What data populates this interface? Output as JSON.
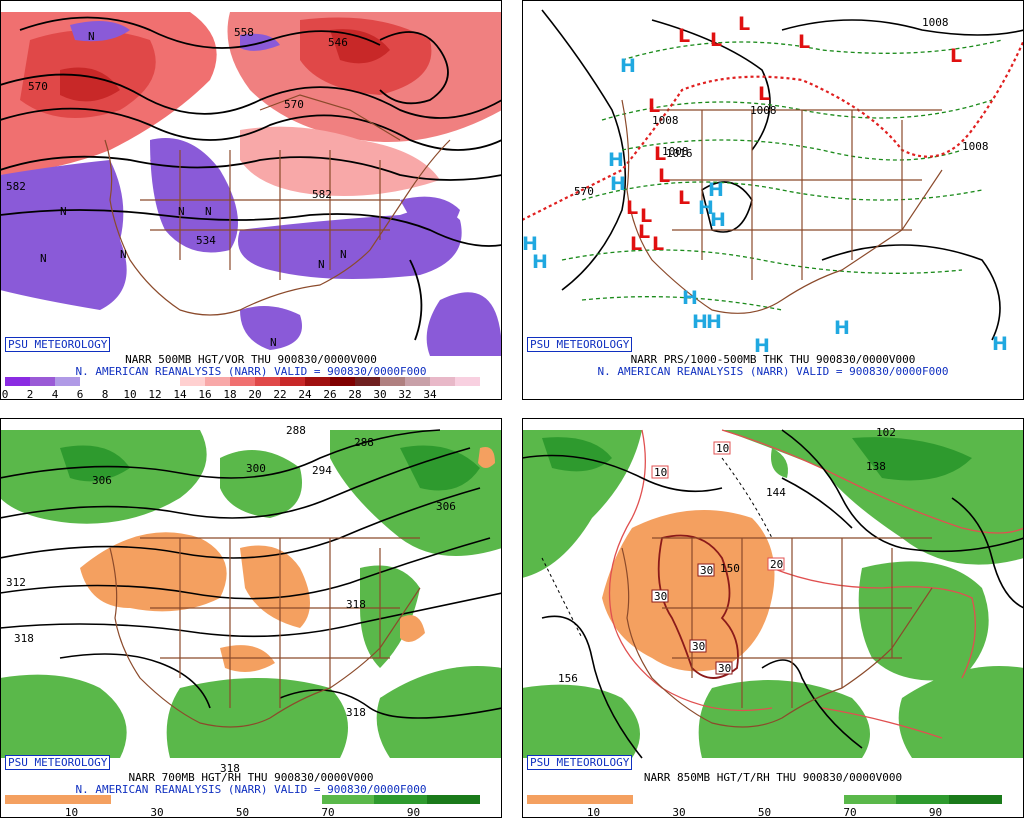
{
  "branding": "PSU METEOROLOGY",
  "panels": [
    {
      "title1": "NARR 500MB HGT/VOR THU 900830/0000V000",
      "title2": "N. AMERICAN REANALYSIS (NARR) VALID = 900830/0000F000",
      "colorbar": [
        "#8a2be2",
        "#9a5ad6",
        "#b09ae6",
        "#ffffff",
        "#ffffff",
        "#ffffff",
        "#ffffff",
        "#ffd0d0",
        "#f8a8a8",
        "#f07070",
        "#e04848",
        "#c82828",
        "#a01010",
        "#800000",
        "#702020",
        "#b08080",
        "#c8a0a8",
        "#e8b8c8",
        "#f8d0e0"
      ],
      "ticks": [
        "0",
        "2",
        "4",
        "6",
        "8",
        "10",
        "12",
        "14",
        "16",
        "18",
        "20",
        "22",
        "24",
        "26",
        "28",
        "30",
        "32",
        "34"
      ],
      "contour_labels": [
        "570",
        "582",
        "546",
        "582",
        "534",
        "570",
        "558"
      ]
    },
    {
      "title1": "NARR PRS/1000-500MB THK THU 900830/0000V000",
      "title2": "N. AMERICAN REANALYSIS (NARR) VALID = 900830/0000F000",
      "contour_labels": [
        "1008",
        "1008",
        "1008",
        "1008",
        "1016",
        "570",
        "1008"
      ],
      "low_symbol": "L",
      "high_symbol": "H"
    },
    {
      "title1": "NARR 700MB HGT/RH THU 900830/0000V000",
      "title2": "N. AMERICAN REANALYSIS (NARR) VALID = 900830/0000F000",
      "colorbar": [
        "#f4a060",
        "#f4a060",
        "#ffffff",
        "#ffffff",
        "#ffffff",
        "#ffffff",
        "#5ab84a",
        "#2e9a2e",
        "#1a7a1a"
      ],
      "ticks": [
        "10",
        "30",
        "50",
        "70",
        "90"
      ],
      "contour_labels": [
        "288",
        "300",
        "294",
        "306",
        "306",
        "288",
        "312",
        "318",
        "318",
        "318",
        "318"
      ]
    },
    {
      "title1": "NARR 850MB HGT/T/RH THU 900830/0000V000",
      "colorbar": [
        "#f4a060",
        "#f4a060",
        "#ffffff",
        "#ffffff",
        "#ffffff",
        "#ffffff",
        "#5ab84a",
        "#2e9a2e",
        "#1a7a1a"
      ],
      "ticks": [
        "10",
        "30",
        "50",
        "70",
        "90"
      ],
      "contour_labels": [
        "144",
        "150",
        "156",
        "138",
        "102"
      ],
      "temp_boxes": [
        "10",
        "10",
        "20",
        "30",
        "30",
        "30",
        "30"
      ]
    }
  ]
}
